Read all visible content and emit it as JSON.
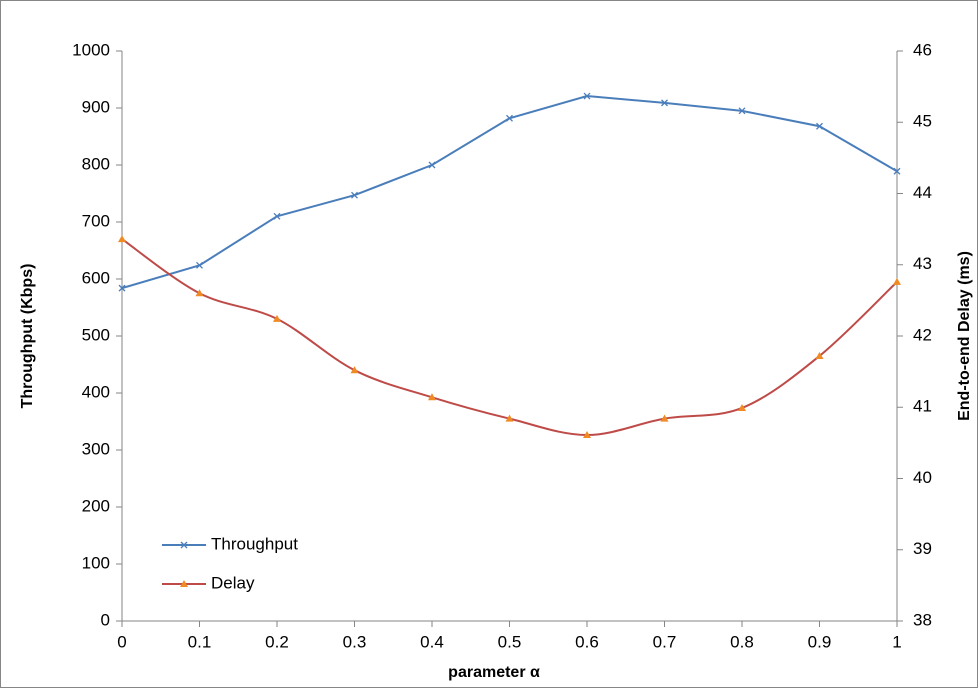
{
  "chart_data": {
    "type": "line",
    "x": [
      0,
      0.1,
      0.2,
      0.3,
      0.4,
      0.5,
      0.6,
      0.7,
      0.8,
      0.9,
      1
    ],
    "xlabel": "parameter α",
    "ylabel": "Throughput (Kbps)",
    "y2label": "End-to-end Delay (ms)",
    "xlim": [
      0,
      1
    ],
    "xticks": [
      0,
      0.1,
      0.2,
      0.3,
      0.4,
      0.5,
      0.6,
      0.7,
      0.8,
      0.9,
      1
    ],
    "ylim": [
      0,
      1000
    ],
    "yticks": [
      0,
      100,
      200,
      300,
      400,
      500,
      600,
      700,
      800,
      900,
      1000
    ],
    "y2lim": [
      38,
      46
    ],
    "y2ticks": [
      38,
      39,
      40,
      41,
      42,
      43,
      44,
      45,
      46
    ],
    "grid": false,
    "legend": "lower left",
    "series": [
      {
        "name": "Throughput",
        "color": "#4a7ebb",
        "marker": "x",
        "smooth": false,
        "values": [
          584,
          624,
          710,
          747,
          800,
          882,
          921,
          909,
          895,
          868,
          789
        ]
      },
      {
        "name": "Delay",
        "color": "#be4b48",
        "marker": "triangle",
        "marker_color": "#f08a24",
        "smooth": true,
        "axis": "y2",
        "values": [
          43.36,
          42.6,
          42.24,
          41.52,
          41.14,
          40.84,
          40.61,
          40.84,
          40.99,
          41.72,
          42.76
        ]
      }
    ]
  }
}
